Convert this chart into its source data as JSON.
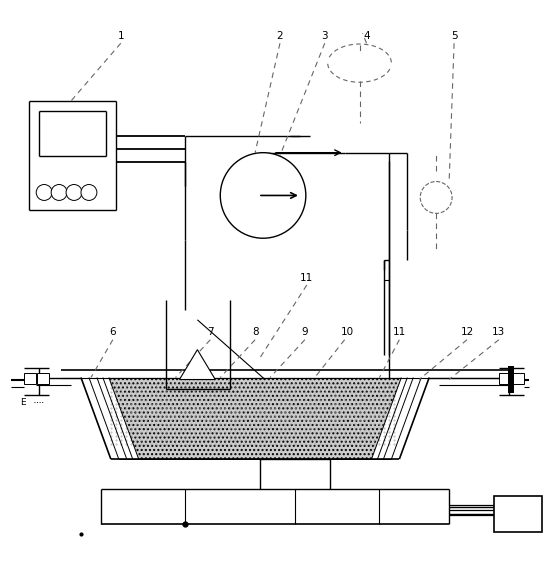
{
  "bg_color": "#ffffff",
  "lc": "#000000",
  "dc": "#666666",
  "fig_width": 5.46,
  "fig_height": 5.69,
  "dpi": 100
}
